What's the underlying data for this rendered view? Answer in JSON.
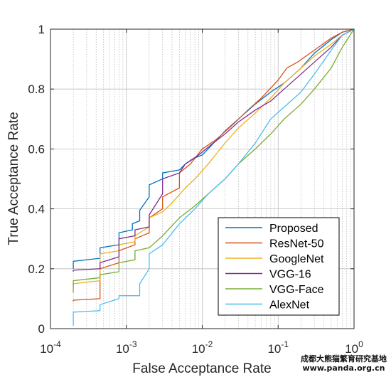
{
  "chart_data": {
    "type": "line",
    "xlabel": "False Acceptance Rate",
    "ylabel": "True Acceptance Rate",
    "xscale": "log",
    "xlim": [
      0.0001,
      1
    ],
    "ylim": [
      0,
      1
    ],
    "grid": true,
    "legend_position": "bottom-right",
    "x_ticks": [
      {
        "value": 0.0001,
        "base": "10",
        "exp": "-4"
      },
      {
        "value": 0.001,
        "base": "10",
        "exp": "-3"
      },
      {
        "value": 0.01,
        "base": "10",
        "exp": "-2"
      },
      {
        "value": 0.1,
        "base": "10",
        "exp": "-1"
      },
      {
        "value": 1,
        "base": "10",
        "exp": "0"
      }
    ],
    "y_ticks": [
      {
        "value": 0,
        "label": "0"
      },
      {
        "value": 0.2,
        "label": "0.2"
      },
      {
        "value": 0.4,
        "label": "0.4"
      },
      {
        "value": 0.6,
        "label": "0.6"
      },
      {
        "value": 0.8,
        "label": "0.8"
      },
      {
        "value": 1,
        "label": "1"
      }
    ],
    "series": [
      {
        "name": "Proposed",
        "color": "#0072BD",
        "points": [
          [
            0.0002,
            0.2
          ],
          [
            0.0002,
            0.225
          ],
          [
            0.00045,
            0.235
          ],
          [
            0.00045,
            0.27
          ],
          [
            0.0008,
            0.28
          ],
          [
            0.0008,
            0.32
          ],
          [
            0.0012,
            0.33
          ],
          [
            0.0012,
            0.35
          ],
          [
            0.0015,
            0.36
          ],
          [
            0.0015,
            0.395
          ],
          [
            0.002,
            0.44
          ],
          [
            0.002,
            0.48
          ],
          [
            0.003,
            0.5
          ],
          [
            0.003,
            0.52
          ],
          [
            0.005,
            0.53
          ],
          [
            0.006,
            0.55
          ],
          [
            0.008,
            0.57
          ],
          [
            0.01,
            0.58
          ],
          [
            0.013,
            0.61
          ],
          [
            0.02,
            0.66
          ],
          [
            0.03,
            0.7
          ],
          [
            0.05,
            0.75
          ],
          [
            0.08,
            0.79
          ],
          [
            0.12,
            0.82
          ],
          [
            0.2,
            0.87
          ],
          [
            0.3,
            0.92
          ],
          [
            0.5,
            0.965
          ],
          [
            0.7,
            0.99
          ],
          [
            1,
            1
          ]
        ]
      },
      {
        "name": "ResNet-50",
        "color": "#D95319",
        "points": [
          [
            0.0002,
            0.09
          ],
          [
            0.0002,
            0.095
          ],
          [
            0.00045,
            0.1
          ],
          [
            0.00045,
            0.2
          ],
          [
            0.0008,
            0.22
          ],
          [
            0.0008,
            0.26
          ],
          [
            0.0013,
            0.28
          ],
          [
            0.0013,
            0.3
          ],
          [
            0.002,
            0.32
          ],
          [
            0.002,
            0.37
          ],
          [
            0.003,
            0.4
          ],
          [
            0.003,
            0.44
          ],
          [
            0.005,
            0.47
          ],
          [
            0.005,
            0.52
          ],
          [
            0.007,
            0.55
          ],
          [
            0.01,
            0.6
          ],
          [
            0.015,
            0.63
          ],
          [
            0.025,
            0.68
          ],
          [
            0.04,
            0.73
          ],
          [
            0.06,
            0.77
          ],
          [
            0.1,
            0.83
          ],
          [
            0.13,
            0.87
          ],
          [
            0.18,
            0.89
          ],
          [
            0.3,
            0.93
          ],
          [
            0.5,
            0.97
          ],
          [
            0.7,
            0.99
          ],
          [
            1,
            1
          ]
        ]
      },
      {
        "name": "GoogleNet",
        "color": "#EDB120",
        "points": [
          [
            0.0002,
            0.14
          ],
          [
            0.0002,
            0.15
          ],
          [
            0.00045,
            0.16
          ],
          [
            0.00045,
            0.25
          ],
          [
            0.0008,
            0.26
          ],
          [
            0.0008,
            0.28
          ],
          [
            0.0013,
            0.29
          ],
          [
            0.0013,
            0.31
          ],
          [
            0.002,
            0.34
          ],
          [
            0.002,
            0.37
          ],
          [
            0.003,
            0.39
          ],
          [
            0.004,
            0.42
          ],
          [
            0.006,
            0.47
          ],
          [
            0.008,
            0.5
          ],
          [
            0.012,
            0.55
          ],
          [
            0.02,
            0.62
          ],
          [
            0.03,
            0.67
          ],
          [
            0.05,
            0.72
          ],
          [
            0.08,
            0.77
          ],
          [
            0.12,
            0.82
          ],
          [
            0.2,
            0.87
          ],
          [
            0.3,
            0.91
          ],
          [
            0.5,
            0.95
          ],
          [
            0.7,
            0.98
          ],
          [
            1,
            1
          ]
        ]
      },
      {
        "name": "VGG-16",
        "color": "#7E2F8E",
        "points": [
          [
            0.0002,
            0.19
          ],
          [
            0.0002,
            0.195
          ],
          [
            0.00045,
            0.2
          ],
          [
            0.00045,
            0.22
          ],
          [
            0.0008,
            0.24
          ],
          [
            0.0008,
            0.3
          ],
          [
            0.0013,
            0.31
          ],
          [
            0.0013,
            0.33
          ],
          [
            0.002,
            0.34
          ],
          [
            0.002,
            0.38
          ],
          [
            0.003,
            0.45
          ],
          [
            0.003,
            0.5
          ],
          [
            0.005,
            0.52
          ],
          [
            0.006,
            0.55
          ],
          [
            0.009,
            0.58
          ],
          [
            0.014,
            0.62
          ],
          [
            0.02,
            0.65
          ],
          [
            0.03,
            0.69
          ],
          [
            0.05,
            0.73
          ],
          [
            0.08,
            0.76
          ],
          [
            0.12,
            0.8
          ],
          [
            0.2,
            0.85
          ],
          [
            0.3,
            0.89
          ],
          [
            0.5,
            0.94
          ],
          [
            0.7,
            0.98
          ],
          [
            1,
            1
          ]
        ]
      },
      {
        "name": "VGG-Face",
        "color": "#77AC30",
        "points": [
          [
            0.0002,
            0.12
          ],
          [
            0.0002,
            0.16
          ],
          [
            0.00045,
            0.17
          ],
          [
            0.00045,
            0.18
          ],
          [
            0.0008,
            0.19
          ],
          [
            0.0008,
            0.22
          ],
          [
            0.0013,
            0.23
          ],
          [
            0.0013,
            0.26
          ],
          [
            0.002,
            0.27
          ],
          [
            0.003,
            0.31
          ],
          [
            0.005,
            0.37
          ],
          [
            0.008,
            0.41
          ],
          [
            0.012,
            0.45
          ],
          [
            0.02,
            0.5
          ],
          [
            0.03,
            0.55
          ],
          [
            0.05,
            0.6
          ],
          [
            0.08,
            0.65
          ],
          [
            0.12,
            0.7
          ],
          [
            0.2,
            0.75
          ],
          [
            0.3,
            0.8
          ],
          [
            0.5,
            0.87
          ],
          [
            0.7,
            0.94
          ],
          [
            1,
            1
          ]
        ]
      },
      {
        "name": "AlexNet",
        "color": "#4DBEEE",
        "points": [
          [
            0.0002,
            0.01
          ],
          [
            0.0002,
            0.055
          ],
          [
            0.00045,
            0.06
          ],
          [
            0.00045,
            0.08
          ],
          [
            0.0008,
            0.1
          ],
          [
            0.0008,
            0.11
          ],
          [
            0.0015,
            0.11
          ],
          [
            0.0015,
            0.15
          ],
          [
            0.002,
            0.2
          ],
          [
            0.002,
            0.25
          ],
          [
            0.003,
            0.28
          ],
          [
            0.005,
            0.35
          ],
          [
            0.008,
            0.4
          ],
          [
            0.012,
            0.45
          ],
          [
            0.02,
            0.5
          ],
          [
            0.03,
            0.55
          ],
          [
            0.05,
            0.62
          ],
          [
            0.08,
            0.7
          ],
          [
            0.12,
            0.74
          ],
          [
            0.2,
            0.79
          ],
          [
            0.3,
            0.85
          ],
          [
            0.5,
            0.93
          ],
          [
            0.7,
            0.98
          ],
          [
            1,
            1
          ]
        ]
      }
    ]
  },
  "watermark": {
    "line1": "成都大熊猫繁育研究基地",
    "line2": "www.panda.org.cn"
  }
}
